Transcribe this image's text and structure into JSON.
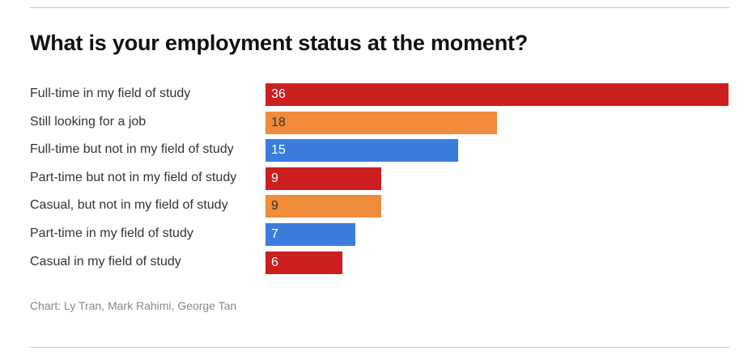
{
  "chart_data": {
    "type": "bar",
    "orientation": "horizontal",
    "title": "What is your employment status at the moment?",
    "categories": [
      "Full-time in my field of study",
      "Still looking for a job",
      "Full-time but not in my field of study",
      "Part-time but not in my field of study",
      "Casual, but not in my field of study",
      "Part-time in my field of study",
      "Casual in my field of study"
    ],
    "values": [
      36,
      18,
      15,
      9,
      9,
      7,
      6
    ],
    "colors": [
      "#cc1f1f",
      "#f08c3a",
      "#3b7ddd",
      "#cc1f1f",
      "#f08c3a",
      "#3b7ddd",
      "#cc1f1f"
    ],
    "label_colors": [
      "#ffffff",
      "#333333",
      "#ffffff",
      "#ffffff",
      "#333333",
      "#ffffff",
      "#ffffff"
    ],
    "xlim": [
      0,
      36
    ],
    "grid": false,
    "source": "Chart: Ly Tran, Mark Rahimi, George Tan"
  }
}
